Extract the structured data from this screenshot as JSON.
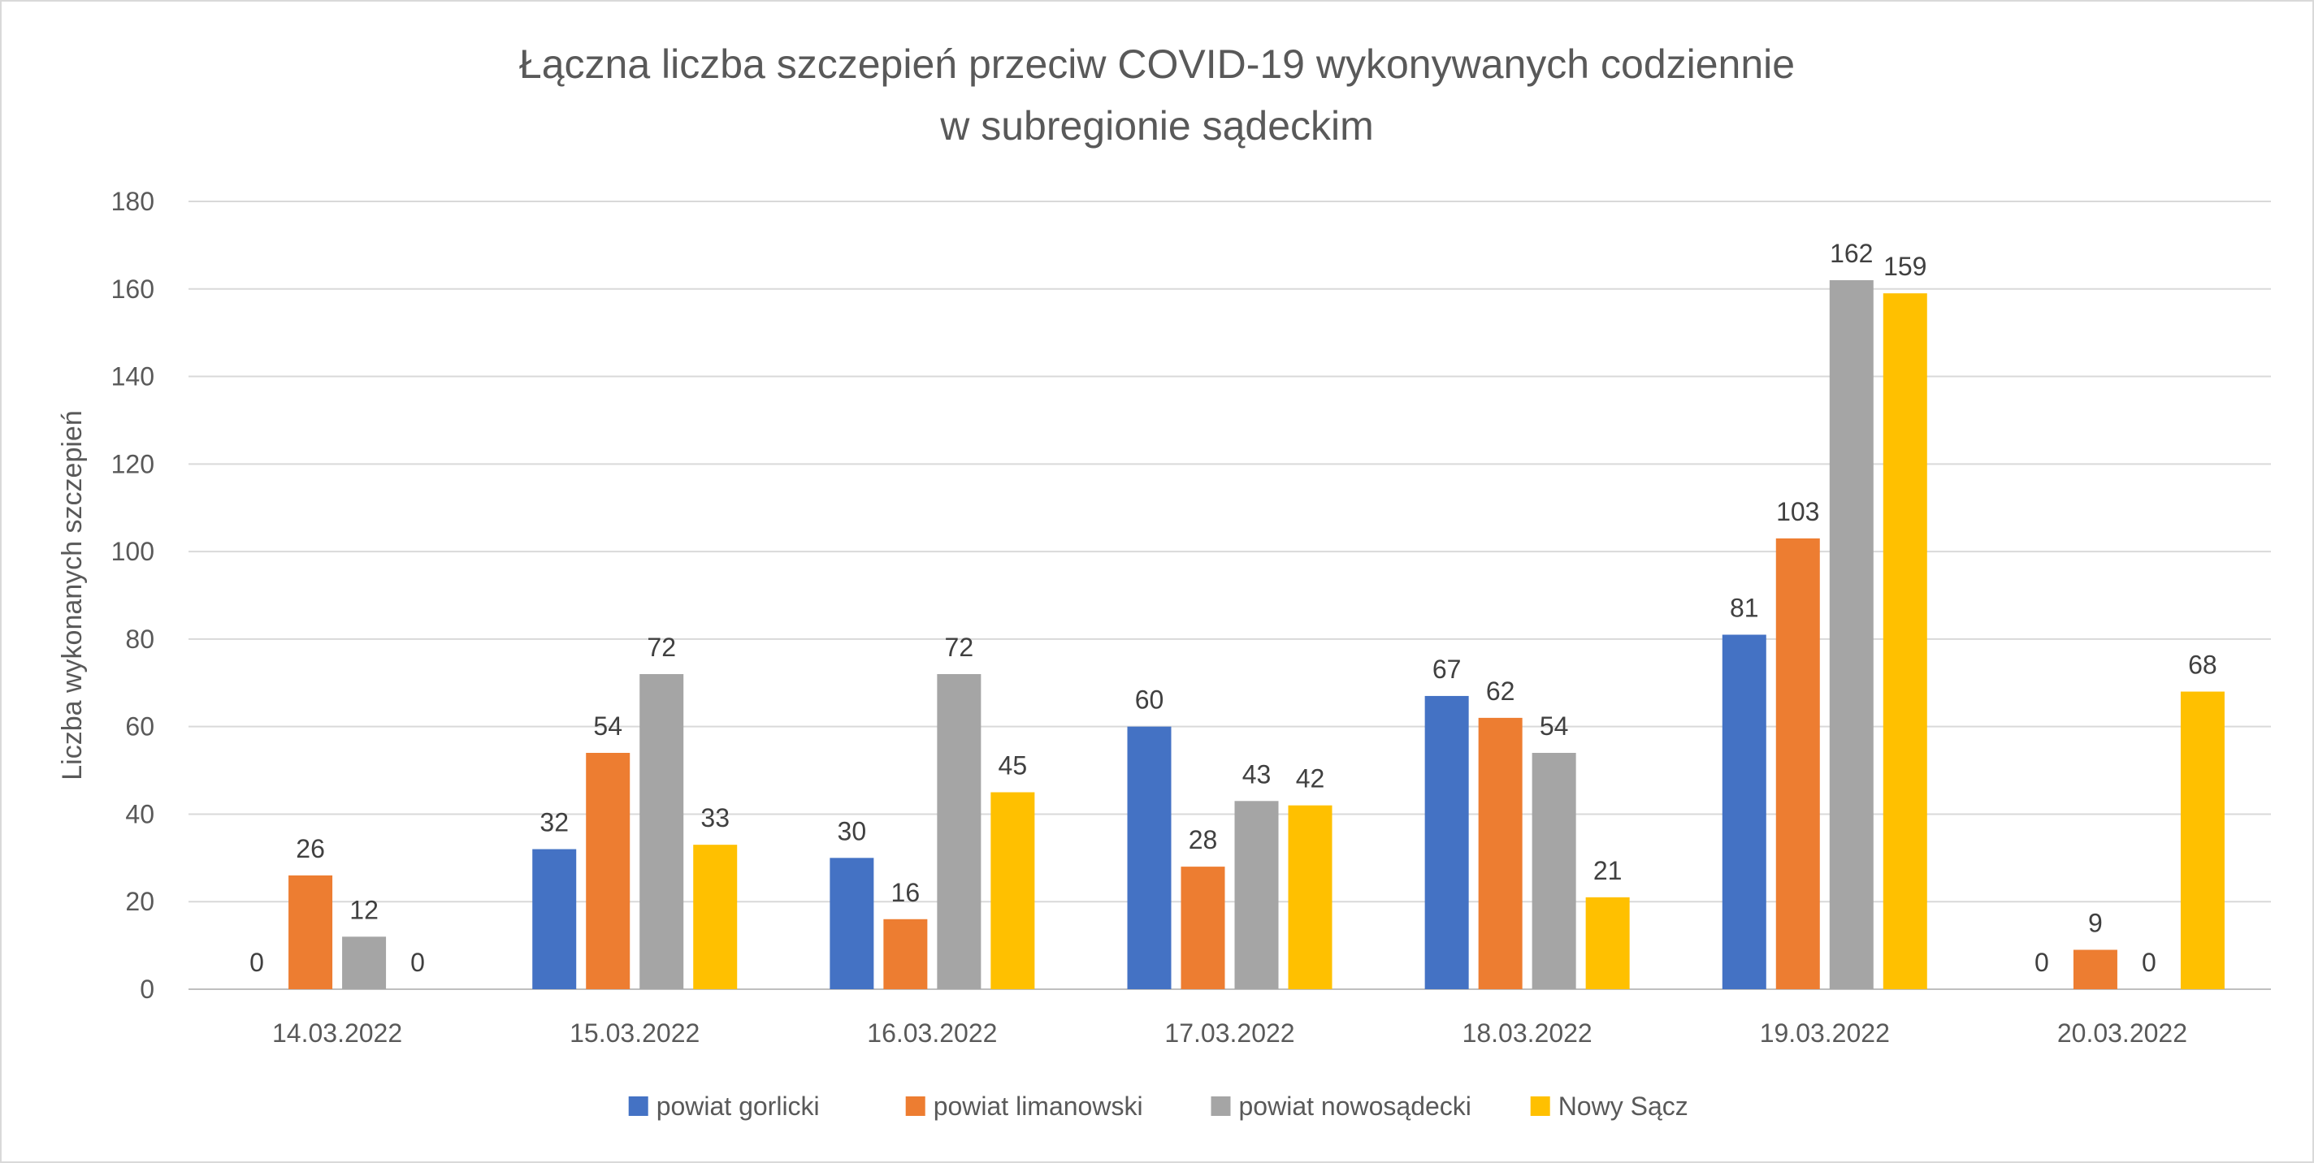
{
  "chart_data": {
    "type": "bar",
    "title": [
      "Łączna liczba szczepień przeciw COVID-19 wykonywanych codziennie",
      "w subregionie sądeckim"
    ],
    "xlabel": "",
    "ylabel": "Liczba wykonanych szczepień",
    "ylim": [
      0,
      180
    ],
    "yticks": [
      "0",
      "20",
      "40",
      "60",
      "80",
      "100",
      "120",
      "140",
      "160",
      "180"
    ],
    "grid": "horizontal",
    "legend_position": "bottom",
    "categories": [
      "14.03.2022",
      "15.03.2022",
      "16.03.2022",
      "17.03.2022",
      "18.03.2022",
      "19.03.2022",
      "20.03.2022"
    ],
    "series": [
      {
        "name": "powiat gorlicki",
        "color": "#4472C4",
        "values": [
          0,
          32,
          30,
          60,
          67,
          81,
          0
        ]
      },
      {
        "name": "powiat limanowski",
        "color": "#ED7D31",
        "values": [
          26,
          54,
          16,
          28,
          62,
          103,
          9
        ]
      },
      {
        "name": "powiat nowosądecki",
        "color": "#A5A5A5",
        "values": [
          12,
          72,
          72,
          43,
          54,
          162,
          0
        ]
      },
      {
        "name": "Nowy Sącz",
        "color": "#FFC000",
        "values": [
          0,
          33,
          45,
          42,
          21,
          159,
          68
        ]
      }
    ]
  }
}
